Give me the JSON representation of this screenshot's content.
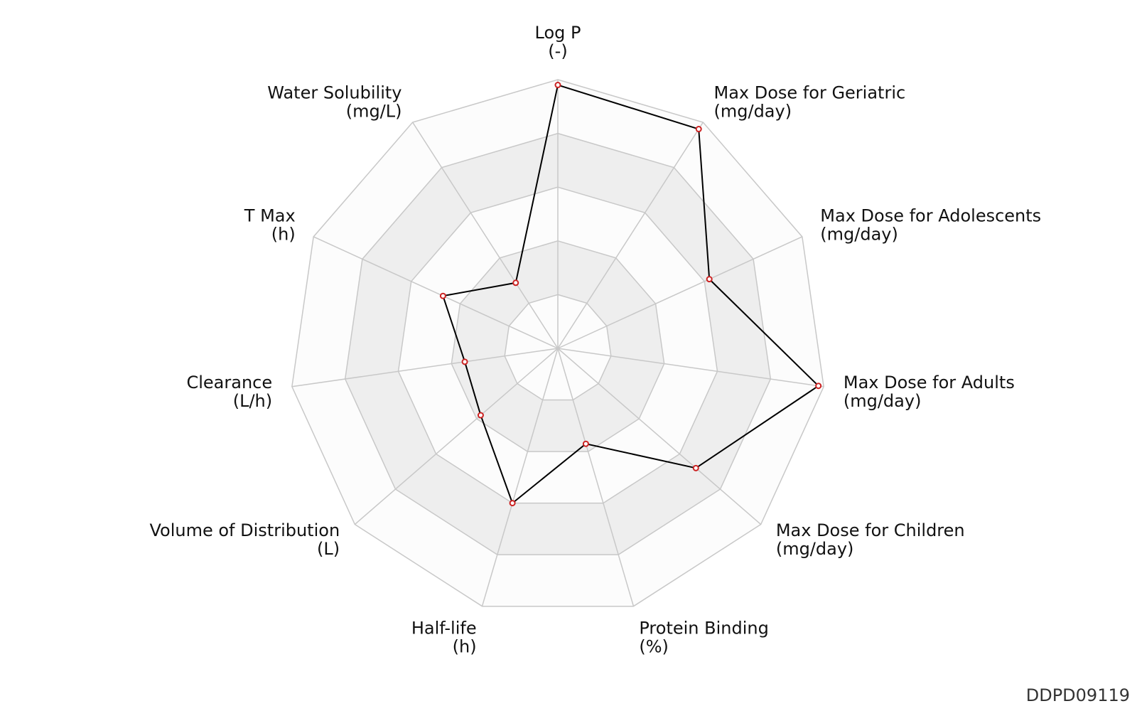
{
  "chart_data": {
    "type": "radar",
    "title": "",
    "scale": [
      0,
      1
    ],
    "ring_levels": [
      0.2,
      0.4,
      0.6,
      0.8,
      1.0
    ],
    "grid": true,
    "axes": [
      {
        "name": "Log P",
        "unit": "(-)",
        "value": 0.98
      },
      {
        "name": "Max Dose for Geriatric",
        "unit": "(mg/day)",
        "value": 0.97
      },
      {
        "name": "Max Dose for Adolescents",
        "unit": "(mg/day)",
        "value": 0.62
      },
      {
        "name": "Max Dose for Adults",
        "unit": "(mg/day)",
        "value": 0.98
      },
      {
        "name": "Max Dose for Children",
        "unit": "(mg/day)",
        "value": 0.68
      },
      {
        "name": "Protein Binding",
        "unit": "(%)",
        "value": 0.37
      },
      {
        "name": "Half-life",
        "unit": "(h)",
        "value": 0.6
      },
      {
        "name": "Volume of Distribution",
        "unit": "(L)",
        "value": 0.38
      },
      {
        "name": "Clearance",
        "unit": "(L/h)",
        "value": 0.35
      },
      {
        "name": "T Max",
        "unit": "(h)",
        "value": 0.47
      },
      {
        "name": "Water Solubility",
        "unit": "(mg/L)",
        "value": 0.29
      }
    ],
    "series": [
      {
        "values": [
          0.98,
          0.97,
          0.62,
          0.98,
          0.68,
          0.37,
          0.6,
          0.38,
          0.35,
          0.47,
          0.29
        ]
      }
    ],
    "colors": {
      "line": "#000000",
      "marker_stroke": "#cc2222",
      "marker_fill": "#ffffff",
      "grid_line": "#c8c8c8",
      "band_light": "#fcfcfc",
      "band_dark": "#eeeeee"
    }
  },
  "watermark": "DDPD09119"
}
